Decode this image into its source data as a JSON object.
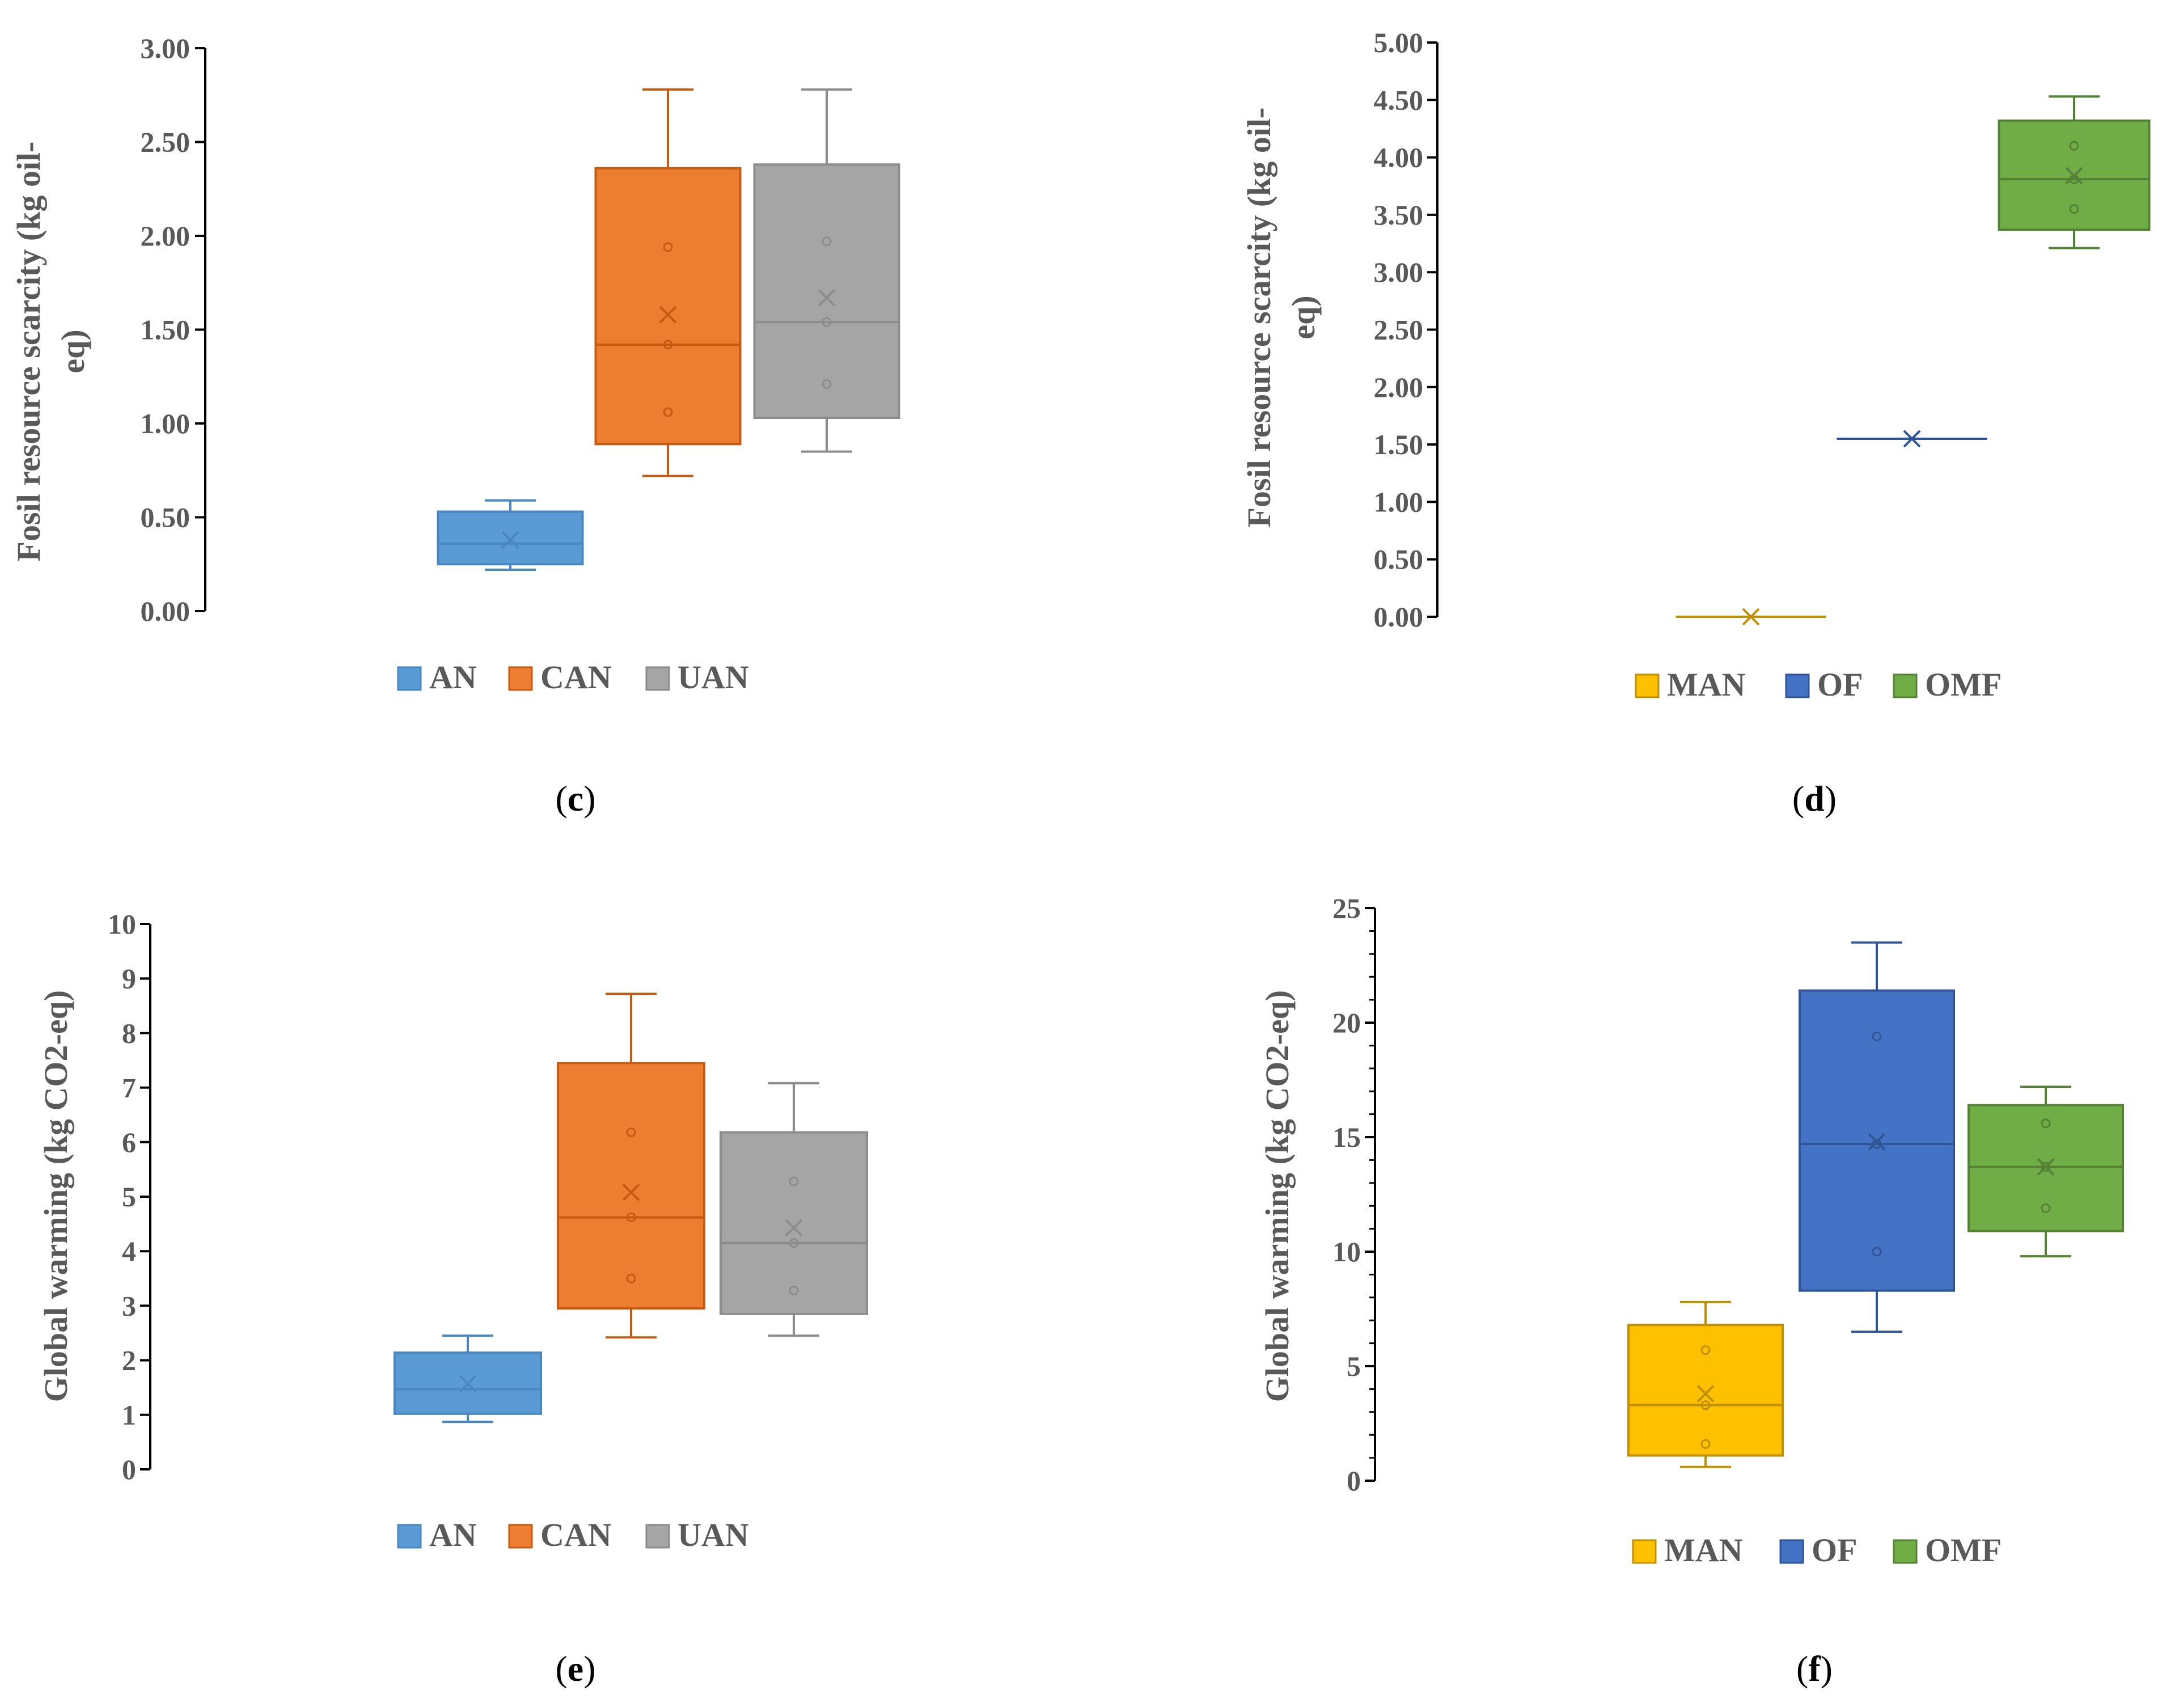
{
  "chart_data": [
    {
      "type": "box",
      "panel_label": "c",
      "ylabel": "Fosil resource scarcity (kg oil-eq)",
      "ylabel_lines": [
        "Fosil resource scarcity (kg oil-",
        "eq)"
      ],
      "ylim": [
        0,
        3.0
      ],
      "yticks": [
        0,
        0.5,
        1.0,
        1.5,
        2.0,
        2.5,
        3.0
      ],
      "ytick_labels": [
        "0.00",
        "0.50",
        "1.00",
        "1.50",
        "2.00",
        "2.50",
        "3.00"
      ],
      "legend": [
        "AN",
        "CAN",
        "UAN"
      ],
      "series": [
        {
          "name": "AN",
          "color": "#5b9bd5",
          "stroke": "#4a86c0",
          "min": 0.22,
          "q1": 0.25,
          "median": 0.36,
          "q3": 0.53,
          "max": 0.59,
          "mean": 0.38,
          "points": []
        },
        {
          "name": "CAN",
          "color": "#ed7d31",
          "stroke": "#c55a11",
          "min": 0.72,
          "q1": 0.89,
          "median": 1.42,
          "q3": 2.36,
          "max": 2.78,
          "mean": 1.58,
          "points": [
            1.06,
            1.42,
            1.94
          ]
        },
        {
          "name": "UAN",
          "color": "#a5a5a5",
          "stroke": "#8c8c8c",
          "min": 0.85,
          "q1": 1.03,
          "median": 1.54,
          "q3": 2.38,
          "max": 2.78,
          "mean": 1.67,
          "points": [
            1.21,
            1.54,
            1.97
          ]
        }
      ]
    },
    {
      "type": "box",
      "panel_label": "d",
      "ylabel": "Fosil resource scarcity (kg oil-eq)",
      "ylabel_lines": [
        "Fosil resource scarcity (kg oil-",
        "eq)"
      ],
      "ylim": [
        0,
        5.0
      ],
      "yticks": [
        0,
        0.5,
        1.0,
        1.5,
        2.0,
        2.5,
        3.0,
        3.5,
        4.0,
        4.5,
        5.0
      ],
      "ytick_labels": [
        "0.00",
        "0.50",
        "1.00",
        "1.50",
        "2.00",
        "2.50",
        "3.00",
        "3.50",
        "4.00",
        "4.50",
        "5.00"
      ],
      "legend": [
        "MAN",
        "OF",
        "OMF"
      ],
      "series": [
        {
          "name": "MAN",
          "color": "#ffc000",
          "stroke": "#bf9000",
          "min": 0.0,
          "q1": 0.0,
          "median": 0.0,
          "q3": 0.0,
          "max": 0.0,
          "mean": 0.0,
          "points": []
        },
        {
          "name": "OF",
          "color": "#4472c4",
          "stroke": "#2f5597",
          "min": 1.55,
          "q1": 1.55,
          "median": 1.55,
          "q3": 1.55,
          "max": 1.55,
          "mean": 1.55,
          "points": []
        },
        {
          "name": "OMF",
          "color": "#70ad47",
          "stroke": "#548235",
          "min": 3.21,
          "q1": 3.37,
          "median": 3.81,
          "q3": 4.32,
          "max": 4.53,
          "mean": 3.84,
          "points": [
            3.55,
            3.81,
            4.1
          ]
        }
      ]
    },
    {
      "type": "box",
      "panel_label": "e",
      "ylabel": "Global warming (kg CO2-eq)",
      "ylabel_lines": [
        "Global warming (kg CO2-eq)"
      ],
      "ylim": [
        0,
        10
      ],
      "yticks": [
        0,
        1,
        2,
        3,
        4,
        5,
        6,
        7,
        8,
        9,
        10
      ],
      "ytick_labels": [
        "0",
        "1",
        "2",
        "3",
        "4",
        "5",
        "6",
        "7",
        "8",
        "9",
        "10"
      ],
      "legend": [
        "AN",
        "CAN",
        "UAN"
      ],
      "series": [
        {
          "name": "AN",
          "color": "#5b9bd5",
          "stroke": "#4a86c0",
          "min": 0.87,
          "q1": 1.02,
          "median": 1.47,
          "q3": 2.14,
          "max": 2.45,
          "mean": 1.57,
          "points": []
        },
        {
          "name": "CAN",
          "color": "#ed7d31",
          "stroke": "#c55a11",
          "min": 2.42,
          "q1": 2.95,
          "median": 4.62,
          "q3": 7.45,
          "max": 8.72,
          "mean": 5.08,
          "points": [
            3.5,
            4.62,
            6.18
          ]
        },
        {
          "name": "UAN",
          "color": "#a5a5a5",
          "stroke": "#8c8c8c",
          "min": 2.45,
          "q1": 2.85,
          "median": 4.15,
          "q3": 6.18,
          "max": 7.08,
          "mean": 4.43,
          "points": [
            3.28,
            4.15,
            5.28
          ]
        }
      ]
    },
    {
      "type": "box",
      "panel_label": "f",
      "ylabel": "Global warming (kg CO2-eq)",
      "ylabel_lines": [
        "Global warming (kg CO2-eq)"
      ],
      "ylim": [
        0,
        25
      ],
      "yticks": [
        0,
        5,
        10,
        15,
        20,
        25
      ],
      "ytick_labels": [
        "0",
        "5",
        "10",
        "15",
        "20",
        "25"
      ],
      "minor_ticks": true,
      "legend": [
        "MAN",
        "OF",
        "OMF"
      ],
      "series": [
        {
          "name": "MAN",
          "color": "#ffc000",
          "stroke": "#bf9000",
          "min": 0.6,
          "q1": 1.1,
          "median": 3.3,
          "q3": 6.8,
          "max": 7.8,
          "mean": 3.8,
          "points": [
            1.6,
            3.3,
            5.7
          ]
        },
        {
          "name": "OF",
          "color": "#4472c4",
          "stroke": "#2f5597",
          "min": 6.5,
          "q1": 8.3,
          "median": 14.7,
          "q3": 21.4,
          "max": 23.5,
          "mean": 14.8,
          "points": [
            10.0,
            14.7,
            19.4
          ]
        },
        {
          "name": "OMF",
          "color": "#70ad47",
          "stroke": "#548235",
          "min": 9.8,
          "q1": 10.9,
          "median": 13.7,
          "q3": 16.4,
          "max": 17.2,
          "mean": 13.7,
          "points": [
            11.9,
            13.7,
            15.6
          ]
        }
      ]
    }
  ]
}
